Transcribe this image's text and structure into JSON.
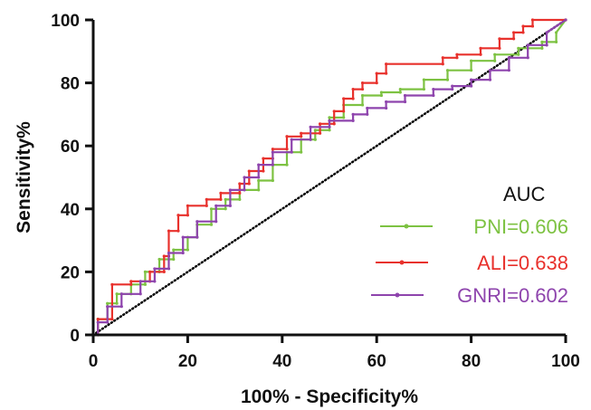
{
  "chart_data": {
    "type": "line",
    "title": "",
    "xlabel": "100% - Specificity%",
    "ylabel": "Sensitivity%",
    "xlim": [
      0,
      100
    ],
    "ylim": [
      0,
      100
    ],
    "xticks": [
      0,
      20,
      40,
      60,
      80,
      100
    ],
    "yticks": [
      0,
      20,
      40,
      60,
      80,
      100
    ],
    "grid": false,
    "legend": {
      "title": "AUC",
      "placement": "bottom-right"
    },
    "reference_line": {
      "x": [
        0,
        100
      ],
      "y": [
        0,
        100
      ],
      "color": "#000000"
    },
    "series": [
      {
        "name": "PNI=0.606",
        "color": "#7dc242",
        "x": [
          0,
          1,
          1,
          3,
          3,
          5,
          5,
          8,
          8,
          11,
          11,
          14,
          14,
          17,
          17,
          20,
          20,
          22,
          22,
          25,
          25,
          28,
          28,
          31,
          31,
          35,
          35,
          38,
          38,
          41,
          41,
          44,
          44,
          47,
          47,
          50,
          50,
          53,
          53,
          57,
          57,
          61,
          61,
          65,
          65,
          70,
          70,
          75,
          75,
          80,
          80,
          85,
          85,
          90,
          90,
          95,
          95,
          98,
          98,
          100
        ],
        "y": [
          0,
          0,
          5,
          5,
          10,
          10,
          13,
          13,
          16,
          16,
          20,
          20,
          24,
          24,
          27,
          27,
          31,
          31,
          35,
          35,
          40,
          40,
          43,
          43,
          46,
          46,
          49,
          49,
          54,
          54,
          58,
          58,
          62,
          62,
          65,
          65,
          69,
          69,
          73,
          73,
          76,
          76,
          77,
          77,
          78,
          78,
          81,
          81,
          84,
          84,
          87,
          87,
          89,
          89,
          91,
          91,
          93,
          93,
          96,
          100
        ]
      },
      {
        "name": "ALI=0.638",
        "color": "#e8312c",
        "x": [
          0,
          1,
          1,
          4,
          4,
          8,
          8,
          12,
          12,
          15,
          15,
          16,
          16,
          18,
          18,
          20,
          20,
          24,
          24,
          27,
          27,
          31,
          31,
          33,
          33,
          36,
          36,
          38,
          38,
          41,
          41,
          44,
          44,
          48,
          48,
          51,
          51,
          53,
          53,
          55,
          55,
          57,
          57,
          60,
          60,
          62,
          62,
          74,
          74,
          77,
          77,
          82,
          82,
          86,
          86,
          89,
          89,
          91,
          91,
          93,
          93,
          100
        ],
        "y": [
          0,
          0,
          5,
          5,
          16,
          16,
          17,
          17,
          20,
          20,
          25,
          25,
          33,
          33,
          38,
          38,
          41,
          41,
          43,
          43,
          45,
          45,
          48,
          48,
          52,
          52,
          56,
          56,
          59,
          59,
          63,
          63,
          64,
          64,
          67,
          67,
          71,
          71,
          75,
          75,
          78,
          78,
          80,
          80,
          83,
          83,
          86,
          86,
          88,
          88,
          89,
          89,
          91,
          91,
          94,
          94,
          96,
          96,
          98,
          98,
          100,
          100
        ]
      },
      {
        "name": "GNRI=0.602",
        "color": "#8e44ad",
        "x": [
          0,
          1,
          1,
          3,
          3,
          6,
          6,
          10,
          10,
          13,
          13,
          16,
          16,
          19,
          19,
          22,
          22,
          26,
          26,
          29,
          29,
          32,
          32,
          35,
          35,
          38,
          38,
          42,
          42,
          46,
          46,
          50,
          50,
          55,
          55,
          58,
          58,
          62,
          62,
          66,
          66,
          72,
          72,
          76,
          76,
          80,
          80,
          84,
          84,
          88,
          88,
          92,
          92,
          96,
          96,
          100
        ],
        "y": [
          0,
          0,
          4,
          4,
          9,
          9,
          13,
          13,
          17,
          17,
          21,
          21,
          26,
          26,
          31,
          31,
          36,
          36,
          41,
          41,
          46,
          46,
          50,
          50,
          54,
          54,
          58,
          58,
          62,
          62,
          66,
          66,
          68,
          68,
          70,
          70,
          72,
          72,
          74,
          74,
          76,
          76,
          78,
          78,
          79,
          79,
          81,
          81,
          84,
          84,
          88,
          88,
          92,
          92,
          96,
          100
        ]
      }
    ]
  }
}
